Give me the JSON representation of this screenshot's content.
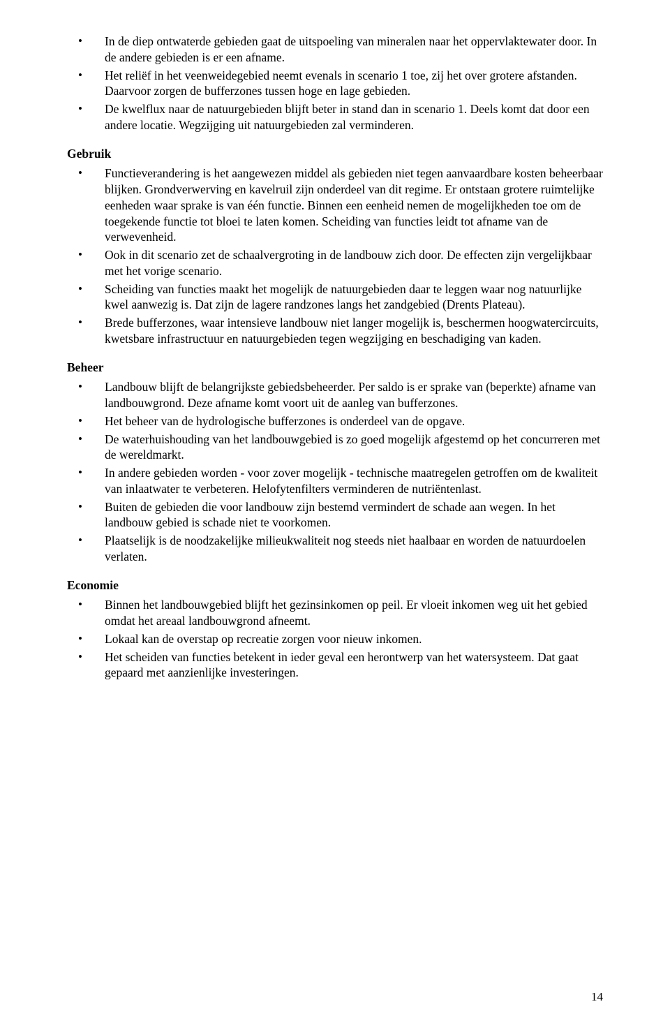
{
  "top_list": [
    "In de diep ontwaterde gebieden gaat de uitspoeling van mineralen naar het oppervlaktewater door. In de andere gebieden is er een afname.",
    "Het reliëf in het veenweidegebied neemt evenals in scenario 1 toe, zij het over grotere afstanden. Daarvoor zorgen de bufferzones tussen hoge en lage gebieden.",
    "De kwelflux naar de natuurgebieden blijft beter in stand dan in scenario 1. Deels komt dat door een andere locatie. Wegzijging uit natuurgebieden zal verminderen."
  ],
  "sections": {
    "gebruik": {
      "heading": "Gebruik",
      "items": [
        "Functieverandering is het aangewezen middel als gebieden niet tegen aanvaardbare kosten beheerbaar blijken. Grondverwerving en kavelruil zijn onderdeel van dit regime. Er ontstaan grotere ruimtelijke eenheden waar sprake is van één functie. Binnen een eenheid nemen de mogelijkheden toe om de toegekende functie tot bloei te laten komen. Scheiding van functies leidt tot afname van de verwevenheid.",
        "Ook in dit scenario zet de schaalvergroting in de landbouw zich door. De effecten zijn vergelijkbaar met het vorige scenario.",
        "Scheiding van functies maakt het mogelijk de natuurgebieden daar te leggen waar nog natuurlijke kwel aanwezig is. Dat zijn de lagere randzones langs het zandgebied (Drents Plateau).",
        "Brede bufferzones, waar intensieve landbouw niet langer mogelijk is, beschermen hoogwatercircuits, kwetsbare infrastructuur en natuurgebieden tegen wegzijging en beschadiging van kaden."
      ]
    },
    "beheer": {
      "heading": "Beheer",
      "items": [
        "Landbouw blijft de belangrijkste gebiedsbeheerder. Per saldo is er sprake van (beperkte) afname van landbouwgrond. Deze afname komt voort uit de aanleg van bufferzones.",
        "Het beheer van de hydrologische bufferzones is onderdeel van de opgave.",
        "De waterhuishouding van het landbouwgebied is zo goed mogelijk afgestemd op het concurreren met de wereldmarkt.",
        "In andere gebieden worden - voor zover mogelijk -  technische maatregelen getroffen om de kwaliteit van inlaatwater te verbeteren. Helofytenfilters verminderen de nutriëntenlast.",
        "Buiten de gebieden die voor landbouw zijn bestemd vermindert de schade aan wegen. In het landbouw gebied is schade niet te voorkomen.",
        "Plaatselijk is de noodzakelijke milieukwaliteit nog steeds niet haalbaar en worden de natuurdoelen verlaten."
      ]
    },
    "economie": {
      "heading": "Economie",
      "items": [
        "Binnen het landbouwgebied blijft het gezinsinkomen op peil. Er vloeit inkomen weg uit het gebied omdat het areaal landbouwgrond afneemt.",
        "Lokaal kan de overstap op recreatie zorgen voor nieuw inkomen.",
        "Het scheiden van functies betekent in ieder geval een herontwerp van het watersysteem. Dat gaat gepaard met aanzienlijke investeringen."
      ]
    }
  },
  "page_number": "14"
}
